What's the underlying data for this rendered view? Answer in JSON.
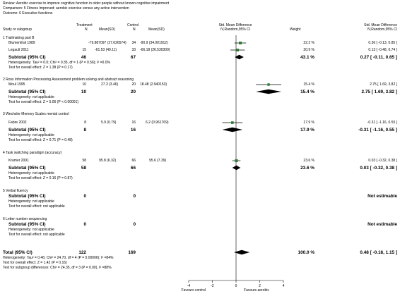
{
  "header": {
    "review": "Review:   Aerobic exercise to improve cognitive function in older people without known cognitive impairment",
    "comparison": "Comparison:   5 Fitness Improved: aerobic exercise versus any active intervention",
    "outcome": "Outcome:   6 Executive functions"
  },
  "columns": {
    "study": "Study or subgroup",
    "treatment": "Treatment",
    "control": "Control",
    "n": "N",
    "mean_sd": "Mean(SD)",
    "smd": "Std. Mean Difference",
    "method": "IV,Random,95% CI",
    "weight": "Weight",
    "smd2": "Std. Mean Difference",
    "method2": "IV,Random,95% CI"
  },
  "groups": [
    {
      "title": "1 Trailmaking part B",
      "studies": [
        {
          "name": "Blumenthal 1989",
          "tn": "",
          "tm": "-79.887097 (27.626574)",
          "cn": "34",
          "cm": "-90.9 (34.001912)",
          "w": "22.2 %",
          "ci": "0.36 [ -0.13, 0.85 ]",
          "est": 0.36,
          "lo": -0.13,
          "hi": 0.85
        },
        {
          "name": "Legault 2011",
          "tn": "15",
          "tm": "-61.53 (49.11)",
          "cn": "33",
          "cm": "-66.18 (26.530309)",
          "w": "20.9 %",
          "ci": "0.13 [ -0.48, 0.74 ]",
          "est": 0.13,
          "lo": -0.48,
          "hi": 0.74
        }
      ],
      "subtotal": {
        "label": "Subtotal (95% CI)",
        "tn": "46",
        "cn": "67",
        "w": "43.1 %",
        "ci": "0.27 [ -0.11, 0.65 ]",
        "est": 0.27,
        "lo": -0.11,
        "hi": 0.65
      },
      "het": "Heterogeneity: Tau² = 0.0; Chi² = 0.35, df = 1 (P = 0.56); I² =0.0%",
      "test": "Test for overall effect: Z = 1.38 (P = 0.17)"
    },
    {
      "title": "2 Ross Information Processing Assessment problem solving and abstract reasoning",
      "studies": [
        {
          "name": "Moul 1995",
          "tn": "10",
          "tm": "27.3 (3.46)",
          "cn": "20",
          "cm": "18.48 (2.940153)",
          "w": "15.4 %",
          "ci": "2.75 [ 1.69, 3.82 ]",
          "est": 2.75,
          "lo": 1.69,
          "hi": 3.82
        }
      ],
      "subtotal": {
        "label": "Subtotal (95% CI)",
        "tn": "10",
        "cn": "20",
        "w": "15.4 %",
        "ci": "2.75 [ 1.69, 3.82 ]",
        "est": 2.75,
        "lo": 1.69,
        "hi": 3.82
      },
      "het": "Heterogeneity: not applicable",
      "test": "Test for overall effect: Z = 5.06 (P < 0.00001)"
    },
    {
      "title": "3 Wechsler Memory Scales mental control",
      "studies": [
        {
          "name": "Fabre 2002",
          "tn": "8",
          "tm": "5.9 (0.79)",
          "cn": "16",
          "cm": "6.2 (0.961769)",
          "w": "17.9 %",
          "ci": "-0.31 [ -1.16, 0.55 ]",
          "est": -0.31,
          "lo": -1.16,
          "hi": 0.55
        }
      ],
      "subtotal": {
        "label": "Subtotal (95% CI)",
        "tn": "8",
        "cn": "16",
        "w": "17.9 %",
        "ci": "-0.31 [ -1.16, 0.55 ]",
        "est": -0.31,
        "lo": -1.16,
        "hi": 0.55
      },
      "het": "Heterogeneity: not applicable",
      "test": "Test for overall effect: Z = 0.71 (P = 0.48)"
    },
    {
      "title": "4 Task switching paradigm (accuracy)",
      "studies": [
        {
          "name": "Kramer 2001",
          "tn": "58",
          "tm": "95.8 (6.32)",
          "cn": "66",
          "cm": "95.6 (7.39)",
          "w": "23.6 %",
          "ci": "0.03 [ -0.32, 0.38 ]",
          "est": 0.03,
          "lo": -0.32,
          "hi": 0.38
        }
      ],
      "subtotal": {
        "label": "Subtotal (95% CI)",
        "tn": "58",
        "cn": "66",
        "w": "23.6 %",
        "ci": "0.03 [ -0.32, 0.38 ]",
        "est": 0.03,
        "lo": -0.32,
        "hi": 0.38
      },
      "het": "Heterogeneity: not applicable",
      "test": "Test for overall effect: Z = 0.16 (P = 0.87)"
    },
    {
      "title": "5 Verbal fluency",
      "studies": [],
      "subtotal": {
        "label": "Subtotal (95% CI)",
        "tn": "0",
        "cn": "0",
        "w": "",
        "ci": "Not estimable"
      },
      "het": "Heterogeneity: not applicable",
      "test": "Test for overall effect: not applicable"
    },
    {
      "title": "6 Letter number sequencing",
      "studies": [],
      "subtotal": {
        "label": "Subtotal (95% CI)",
        "tn": "0",
        "cn": "0",
        "w": "",
        "ci": "Not estimable"
      },
      "het": "Heterogeneity: not applicable",
      "test": "Test for overall effect: not applicable"
    }
  ],
  "total": {
    "label": "Total (95% CI)",
    "tn": "122",
    "cn": "169",
    "w": "100.0 %",
    "ci": "0.48 [ -0.18, 1.15 ]",
    "est": 0.48,
    "lo": -0.18,
    "hi": 1.15,
    "het": "Heterogeneity: Tau² = 0.46; Chi² = 24.70, df = 4 (P = 0.00006); I² =84%",
    "test": "Test for overall effect: Z = 1.42 (P = 0.16)",
    "subgroup": "Test for subgroup differences: Chi² = 24.35, df = 3 (P = 0.00), I² =88%"
  },
  "chart_data": {
    "type": "forest",
    "xlim": [
      -4,
      4
    ],
    "ticks": [
      -4,
      -2,
      0,
      2,
      4
    ],
    "xlabel_left": "Favours control",
    "xlabel_right": "Favours aerobic",
    "points": [
      {
        "study": "Blumenthal 1989",
        "est": 0.36,
        "lo": -0.13,
        "hi": 0.85,
        "weight": 22.2
      },
      {
        "study": "Legault 2011",
        "est": 0.13,
        "lo": -0.48,
        "hi": 0.74,
        "weight": 20.9
      },
      {
        "study": "Moul 1995",
        "est": 2.75,
        "lo": 1.69,
        "hi": 3.82,
        "weight": 15.4
      },
      {
        "study": "Fabre 2002",
        "est": -0.31,
        "lo": -1.16,
        "hi": 0.55,
        "weight": 17.9
      },
      {
        "study": "Kramer 2001",
        "est": 0.03,
        "lo": -0.32,
        "hi": 0.38,
        "weight": 23.6
      }
    ],
    "diamonds": [
      {
        "label": "Subtotal 1",
        "est": 0.27,
        "lo": -0.11,
        "hi": 0.65
      },
      {
        "label": "Subtotal 2",
        "est": 2.75,
        "lo": 1.69,
        "hi": 3.82
      },
      {
        "label": "Subtotal 3",
        "est": -0.31,
        "lo": -1.16,
        "hi": 0.55
      },
      {
        "label": "Subtotal 4",
        "est": 0.03,
        "lo": -0.32,
        "hi": 0.38
      },
      {
        "label": "Total",
        "est": 0.48,
        "lo": -0.18,
        "hi": 1.15
      }
    ],
    "colors": {
      "marker": "#2e7d32",
      "diamond": "#000000",
      "line": "#000000"
    }
  }
}
